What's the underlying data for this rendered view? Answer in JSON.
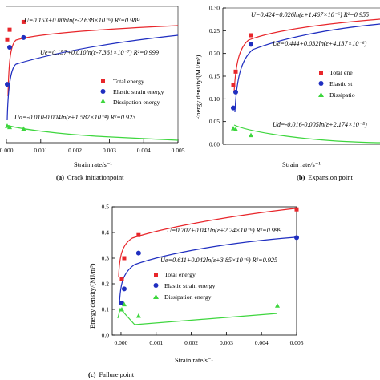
{
  "figure": {
    "panels": [
      {
        "caption_label": "(a)",
        "caption_text": "Crack initiationpoint",
        "xlabel": "Strain rate/s⁻¹",
        "ylabel": "",
        "equations": {
          "total": "U=0.153+0.008ln(ε-2.638×10⁻⁶)  R²=0.989",
          "elastic": "Ue=0.157+0.010ln(ε-7.361×10⁻⁷)  R²=0.999",
          "dissipation": "Ud=-0.010-0.004ln(ε+1.587×10⁻⁴)  R²=0.923"
        },
        "legend": [
          "Total energy",
          "Elastic strain  energy",
          "Dissipation energy"
        ]
      },
      {
        "caption_label": "(b)",
        "caption_text": "Expansion point",
        "xlabel": "Strain rate/s⁻¹",
        "ylabel": "Energy density/(MJ/m³)",
        "equations": {
          "total": "U=0.424+0.026ln(ε+1.467×10⁻⁶)  R²=0.955",
          "elastic": "Ue=0.444+0.032ln(ε+4.137×10⁻⁶)",
          "dissipation": "Ud=-0.016-0.005ln(ε+2.174×10⁻⁵)"
        },
        "legend": [
          "Total ene",
          "Elastic st",
          "Dissipatio"
        ]
      },
      {
        "caption_label": "(c)",
        "caption_text": "Failure point",
        "xlabel": "Strain rate/s⁻¹",
        "ylabel": "Energy density/(MJ/m³)",
        "equations": {
          "total": "U=0.707+0.041ln(ε+2.24×10⁻⁶)  R²=0.999",
          "elastic": "Ue=0.611+0.042ln(ε+3.85×10⁻⁶)  R²=0.925"
        },
        "legend": [
          "Total energy",
          "Elastic strain  energy",
          "Dissipation energy"
        ]
      }
    ],
    "colors": {
      "total": "#e8262b",
      "elastic": "#1f2ec0",
      "dissipation": "#3ed63e",
      "axis": "#000000"
    }
  },
  "chart_data": [
    {
      "type": "scatter",
      "panel": "(a)",
      "x_ticks": [
        "0.000",
        "0.001",
        "0.002",
        "0.003",
        "0.004",
        "0.005"
      ],
      "xlim": [
        0,
        0.005
      ],
      "series": [
        {
          "name": "Total energy",
          "x": [
            1e-05,
            0.0001,
            0.0005
          ],
          "y": [
            0.265,
            0.29,
            0.31
          ]
        },
        {
          "name": "Elastic strain  energy",
          "x": [
            1e-05,
            0.0001,
            0.0005
          ],
          "y": [
            0.15,
            0.245,
            0.27
          ]
        },
        {
          "name": "Dissipation energy",
          "x": [
            1e-05,
            0.0001,
            0.0005
          ],
          "y": [
            0.043,
            0.04,
            0.036
          ]
        }
      ],
      "fit_label_x_max": 0.005
    },
    {
      "type": "scatter",
      "panel": "(b)",
      "y_ticks": [
        "0.00",
        "0.05",
        "0.10",
        "0.15",
        "0.20",
        "0.25",
        "0.30"
      ],
      "ylim": [
        0,
        0.3
      ],
      "series": [
        {
          "name": "Total energy",
          "x": [
            1e-05,
            0.0001,
            0.0005
          ],
          "y": [
            0.13,
            0.16,
            0.24
          ]
        },
        {
          "name": "Elastic strain  energy",
          "x": [
            1e-05,
            0.0001,
            0.0005
          ],
          "y": [
            0.08,
            0.115,
            0.22
          ]
        },
        {
          "name": "Dissipation energy",
          "x": [
            1e-05,
            0.0001,
            0.0005
          ],
          "y": [
            0.035,
            0.033,
            0.02
          ]
        }
      ]
    },
    {
      "type": "scatter",
      "panel": "(c)",
      "x_ticks": [
        "0.000",
        "0.001",
        "0.002",
        "0.003",
        "0.004",
        "0.005"
      ],
      "y_ticks": [
        "0.0",
        "0.1",
        "0.2",
        "0.3",
        "0.4",
        "0.5"
      ],
      "xlim": [
        -0.0006,
        0.005
      ],
      "ylim": [
        0,
        0.5
      ],
      "series": [
        {
          "name": "Total energy",
          "x": [
            1e-05,
            0.0001,
            0.0005,
            0.005
          ],
          "y": [
            0.22,
            0.3,
            0.39,
            0.49
          ]
        },
        {
          "name": "Elastic strain  energy",
          "x": [
            1e-05,
            0.0001,
            0.0005,
            0.005
          ],
          "y": [
            0.125,
            0.18,
            0.32,
            0.38
          ]
        },
        {
          "name": "Dissipation energy",
          "x": [
            1e-05,
            0.0001,
            0.0005,
            0.0046
          ],
          "y": [
            0.1,
            0.12,
            0.075,
            0.115
          ]
        }
      ]
    }
  ]
}
